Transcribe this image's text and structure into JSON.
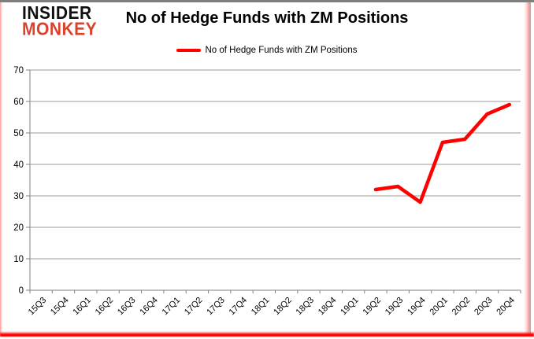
{
  "logo": {
    "line1": "INSIDER",
    "line2": "MONKEY"
  },
  "header": {
    "title": "No of Hedge Funds with ZM Positions"
  },
  "legend": {
    "label": "No of Hedge Funds with ZM Positions"
  },
  "colors": {
    "series_red": "#ff0000",
    "logo_black": "#111111",
    "logo_red": "#d9432c",
    "gridline": "#9a9a9a",
    "axis": "#808080",
    "tick_text": "#000000"
  },
  "chart_data": {
    "type": "line",
    "title": "No of Hedge Funds with ZM Positions",
    "xlabel": "",
    "ylabel": "",
    "ylim": [
      0,
      70
    ],
    "ytick_step": 10,
    "grid": true,
    "legend_position": "top",
    "categories": [
      "15Q3",
      "15Q4",
      "16Q1",
      "16Q2",
      "16Q3",
      "16Q4",
      "17Q1",
      "17Q2",
      "17Q3",
      "17Q4",
      "18Q1",
      "18Q2",
      "18Q3",
      "18Q4",
      "19Q1",
      "19Q2",
      "19Q3",
      "19Q4",
      "20Q1",
      "20Q2",
      "20Q3",
      "20Q4"
    ],
    "series": [
      {
        "name": "No of Hedge Funds with ZM Positions",
        "color": "#ff0000",
        "values": [
          null,
          null,
          null,
          null,
          null,
          null,
          null,
          null,
          null,
          null,
          null,
          null,
          null,
          null,
          null,
          32,
          33,
          28,
          47,
          48,
          56,
          59
        ]
      }
    ]
  }
}
